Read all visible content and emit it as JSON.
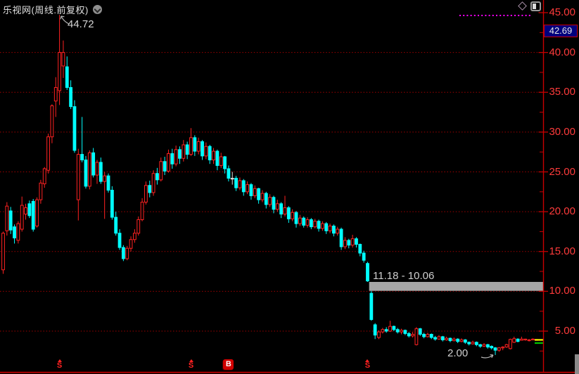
{
  "header": {
    "title": "乐视网(周线.前复权)",
    "dropdown_icon": "chevron-down-circle",
    "tool_icons": [
      "diamond-outline",
      "panel-toggle"
    ]
  },
  "y_axis": {
    "labels": [
      {
        "text": "45.00",
        "price": 45
      },
      {
        "text": "40.00",
        "price": 40
      },
      {
        "text": "35.00",
        "price": 35
      },
      {
        "text": "30.00",
        "price": 30
      },
      {
        "text": "25.00",
        "price": 25
      },
      {
        "text": "20.00",
        "price": 20
      },
      {
        "text": "15.00",
        "price": 15
      },
      {
        "text": "10.00",
        "price": 10
      },
      {
        "text": "5.00",
        "price": 5
      }
    ],
    "badge": {
      "text": "42.69",
      "price": 42.69,
      "bg": "#00007d",
      "border": "#cc0000"
    },
    "label_color": "#ff3b3b",
    "axis_line_color": "#c80000",
    "tick_step": 2.5
  },
  "chart_data": {
    "type": "candlestick",
    "title": "乐视网(周线.前复权)",
    "ylim": [
      1.5,
      46.5
    ],
    "grid_prices": [
      5,
      10,
      15,
      20,
      25,
      30,
      35,
      40
    ],
    "grid_color": "#a00000",
    "up_color": "#ff2121",
    "down_color": "#00ffff",
    "flat_color": "#dcdcdc",
    "background": "#000000",
    "candles": [
      [
        12.7,
        17.5,
        12.2,
        17.3
      ],
      [
        17.6,
        21.2,
        17.0,
        20.7
      ],
      [
        20.1,
        20.6,
        17.2,
        17.7
      ],
      [
        18.1,
        18.4,
        16.0,
        16.7
      ],
      [
        16.4,
        18.8,
        16.0,
        18.5
      ],
      [
        17.8,
        21.9,
        17.5,
        20.8
      ],
      [
        19.7,
        21.0,
        19.0,
        20.5
      ],
      [
        21.0,
        21.4,
        19.2,
        19.5
      ],
      [
        21.3,
        21.6,
        17.5,
        17.8
      ],
      [
        18.2,
        21.8,
        18.0,
        21.5
      ],
      [
        21.5,
        24.0,
        21.0,
        23.6
      ],
      [
        23.5,
        25.6,
        23.0,
        25.4
      ],
      [
        25.2,
        29.8,
        24.8,
        29.4
      ],
      [
        29.4,
        33.5,
        28.6,
        33.3
      ],
      [
        33.9,
        36.9,
        31.9,
        35.6
      ],
      [
        35.2,
        44.72,
        33.4,
        40.0
      ],
      [
        38.3,
        41.5,
        36.8,
        40.0
      ],
      [
        38.2,
        39.5,
        35.3,
        35.6
      ],
      [
        35.6,
        36.5,
        32.9,
        33.2
      ],
      [
        33.2,
        34.0,
        27.4,
        27.7
      ],
      [
        21.5,
        27.9,
        18.9,
        27.2
      ],
      [
        27.2,
        31.9,
        26.2,
        26.5
      ],
      [
        26.5,
        27.0,
        22.9,
        23.2
      ],
      [
        23.2,
        27.7,
        22.8,
        27.4
      ],
      [
        27.4,
        28.0,
        24.3,
        24.6
      ],
      [
        24.6,
        26.5,
        23.5,
        26.2
      ],
      [
        26.2,
        26.8,
        23.5,
        23.8
      ],
      [
        23.8,
        25.0,
        19.1,
        24.5
      ],
      [
        24.5,
        24.8,
        22.4,
        22.7
      ],
      [
        22.7,
        23.2,
        19.0,
        19.3
      ],
      [
        19.3,
        20.0,
        17.0,
        17.3
      ],
      [
        17.3,
        17.8,
        15.2,
        15.5
      ],
      [
        15.5,
        15.8,
        13.8,
        14.1
      ],
      [
        14.1,
        15.7,
        13.9,
        15.4
      ],
      [
        15.4,
        16.9,
        15.0,
        16.5
      ],
      [
        16.5,
        17.8,
        16.1,
        17.3
      ],
      [
        17.3,
        19.4,
        17.0,
        19.0
      ],
      [
        19.0,
        21.7,
        18.8,
        21.2
      ],
      [
        21.2,
        23.8,
        20.9,
        23.3
      ],
      [
        23.3,
        23.9,
        21.8,
        22.4
      ],
      [
        22.4,
        25.2,
        22.0,
        24.8
      ],
      [
        24.8,
        25.5,
        23.4,
        24.0
      ],
      [
        24.0,
        26.8,
        23.8,
        26.3
      ],
      [
        26.3,
        26.9,
        24.6,
        25.1
      ],
      [
        25.1,
        27.8,
        24.9,
        27.3
      ],
      [
        27.3,
        27.9,
        25.4,
        26.0
      ],
      [
        26.0,
        28.3,
        25.7,
        27.8
      ],
      [
        27.8,
        28.2,
        26.0,
        26.7
      ],
      [
        26.7,
        29.0,
        26.3,
        28.4
      ],
      [
        28.4,
        28.8,
        26.6,
        27.2
      ],
      [
        27.2,
        30.5,
        27.0,
        29.3
      ],
      [
        29.3,
        29.6,
        27.0,
        27.6
      ],
      [
        27.6,
        29.3,
        27.2,
        28.8
      ],
      [
        28.8,
        29.0,
        26.5,
        27.0
      ],
      [
        27.0,
        28.7,
        26.6,
        28.2
      ],
      [
        28.2,
        28.4,
        26.0,
        26.5
      ],
      [
        26.5,
        28.0,
        26.0,
        27.6
      ],
      [
        27.6,
        27.8,
        25.2,
        25.8
      ],
      [
        25.8,
        27.4,
        25.5,
        26.9
      ],
      [
        26.9,
        27.0,
        24.8,
        25.4
      ],
      [
        25.4,
        25.8,
        23.8,
        24.2
      ],
      [
        24.2,
        25.0,
        23.4,
        24.2
      ],
      [
        24.2,
        24.5,
        22.6,
        23.0
      ],
      [
        23.0,
        24.3,
        22.7,
        23.9
      ],
      [
        23.9,
        24.1,
        22.0,
        22.5
      ],
      [
        22.5,
        23.8,
        22.2,
        23.4
      ],
      [
        23.4,
        23.6,
        21.5,
        22.0
      ],
      [
        22.0,
        23.3,
        21.7,
        22.9
      ],
      [
        22.9,
        23.0,
        21.0,
        21.5
      ],
      [
        21.5,
        22.7,
        21.2,
        22.3
      ],
      [
        22.3,
        22.5,
        20.4,
        20.9
      ],
      [
        20.9,
        22.2,
        20.6,
        21.8
      ],
      [
        21.8,
        22.0,
        19.8,
        20.3
      ],
      [
        20.3,
        21.5,
        20.0,
        21.0
      ],
      [
        21.0,
        21.2,
        19.2,
        19.7
      ],
      [
        19.7,
        22.0,
        19.4,
        20.5
      ],
      [
        20.5,
        20.7,
        18.6,
        19.1
      ],
      [
        19.1,
        20.3,
        18.8,
        19.9
      ],
      [
        19.9,
        20.1,
        18.0,
        18.5
      ],
      [
        18.5,
        19.6,
        18.2,
        19.2
      ],
      [
        19.2,
        19.4,
        18.0,
        18.3
      ],
      [
        18.3,
        19.3,
        18.0,
        19.0
      ],
      [
        19.0,
        19.2,
        17.8,
        18.1
      ],
      [
        18.1,
        19.1,
        17.9,
        18.8
      ],
      [
        18.8,
        19.0,
        17.5,
        17.9
      ],
      [
        17.9,
        18.8,
        17.6,
        18.5
      ],
      [
        18.5,
        18.7,
        17.2,
        17.6
      ],
      [
        17.6,
        18.5,
        17.3,
        18.2
      ],
      [
        18.2,
        18.4,
        16.9,
        17.3
      ],
      [
        17.3,
        18.1,
        17.0,
        17.8
      ],
      [
        17.8,
        18.0,
        15.2,
        15.6
      ],
      [
        15.6,
        16.8,
        15.3,
        16.4
      ],
      [
        16.4,
        16.6,
        15.4,
        15.8
      ],
      [
        15.8,
        17.1,
        15.5,
        16.6
      ],
      [
        16.6,
        16.8,
        15.5,
        15.9
      ],
      [
        15.9,
        16.0,
        14.4,
        14.8
      ],
      [
        14.8,
        15.1,
        13.6,
        13.9
      ],
      [
        13.5,
        13.7,
        11.18,
        11.3
      ],
      [
        9.75,
        10.06,
        6.3,
        6.45
      ],
      [
        5.8,
        6.0,
        4.0,
        4.5
      ],
      [
        4.2,
        5.1,
        4.0,
        4.9
      ],
      [
        4.9,
        5.4,
        4.7,
        5.2
      ],
      [
        5.2,
        5.5,
        4.8,
        5.0
      ],
      [
        5.0,
        6.3,
        4.9,
        5.6
      ],
      [
        5.6,
        5.7,
        5.0,
        5.2
      ],
      [
        5.2,
        5.4,
        4.7,
        4.9
      ],
      [
        4.9,
        5.3,
        4.6,
        5.1
      ],
      [
        5.1,
        5.2,
        4.5,
        4.7
      ],
      [
        4.7,
        4.9,
        4.2,
        4.4
      ],
      [
        4.4,
        4.9,
        4.2,
        4.6
      ],
      [
        3.3,
        5.5,
        3.2,
        5.3
      ],
      [
        5.3,
        5.4,
        4.4,
        4.6
      ],
      [
        4.6,
        4.8,
        4.1,
        4.3
      ],
      [
        4.3,
        4.8,
        4.2,
        4.6
      ],
      [
        4.6,
        4.7,
        4.0,
        4.2
      ],
      [
        4.2,
        4.4,
        3.8,
        4.0
      ],
      [
        4.0,
        4.5,
        3.9,
        4.3
      ],
      [
        4.3,
        4.4,
        3.7,
        3.9
      ],
      [
        3.9,
        4.3,
        3.8,
        4.1
      ],
      [
        4.1,
        4.2,
        3.6,
        3.8
      ],
      [
        3.8,
        4.2,
        3.7,
        4.0
      ],
      [
        4.0,
        4.1,
        3.5,
        3.7
      ],
      [
        3.7,
        4.1,
        3.6,
        3.9
      ],
      [
        3.9,
        4.0,
        3.4,
        3.6
      ],
      [
        3.6,
        3.7,
        3.2,
        3.4
      ],
      [
        3.4,
        3.8,
        3.3,
        3.6
      ],
      [
        3.6,
        3.7,
        3.1,
        3.3
      ],
      [
        3.3,
        3.4,
        2.9,
        3.1
      ],
      [
        3.1,
        3.5,
        3.0,
        3.3
      ],
      [
        3.3,
        3.4,
        2.8,
        3.0
      ],
      [
        3.1,
        3.2,
        2.7,
        2.9
      ],
      [
        2.9,
        3.0,
        2.0,
        2.6
      ],
      [
        2.6,
        3.0,
        2.4,
        2.9
      ],
      [
        2.9,
        3.1,
        2.6,
        3.0
      ],
      [
        3.0,
        3.4,
        2.9,
        3.3
      ],
      [
        2.8,
        4.05,
        2.7,
        3.96
      ],
      [
        3.6,
        4.3,
        3.5,
        4.05
      ],
      [
        4.0,
        4.1,
        3.6,
        3.7
      ],
      [
        3.85,
        4.3,
        3.8,
        4.0
      ],
      [
        3.9,
        4.05,
        3.8,
        4.0
      ],
      [
        3.85,
        4.0,
        3.7,
        3.9
      ],
      [
        3.95,
        4.1,
        3.85,
        4.0
      ],
      [
        3.9,
        4.0,
        3.8,
        3.95
      ]
    ],
    "annotations": {
      "peak": {
        "text": "44.72",
        "price": 44.72
      },
      "gap": {
        "text": "11.18 - 10.06",
        "top_price": 11.18,
        "bottom_price": 10.06,
        "bar_color": "#a6a6a6"
      },
      "low": {
        "text": "2.00",
        "price": 2.0
      },
      "trendline": {
        "color": "#ff00ff",
        "price": 44.65,
        "style": "dotted"
      }
    },
    "ma_axis_ticks": [
      {
        "color": "#ffff00",
        "price": 3.9
      },
      {
        "color": "#00c800",
        "price": 3.5
      }
    ],
    "legend_position": "none",
    "grid": "horizontal-dotted"
  },
  "markers": [
    {
      "glyph": "S",
      "kind": "ex-rights",
      "candle_index": 15
    },
    {
      "glyph": "S",
      "kind": "ex-rights",
      "candle_index": 50
    },
    {
      "glyph": "B",
      "kind": "buy",
      "candle_index": 60
    },
    {
      "glyph": "S",
      "kind": "ex-rights",
      "candle_index": 97
    }
  ]
}
